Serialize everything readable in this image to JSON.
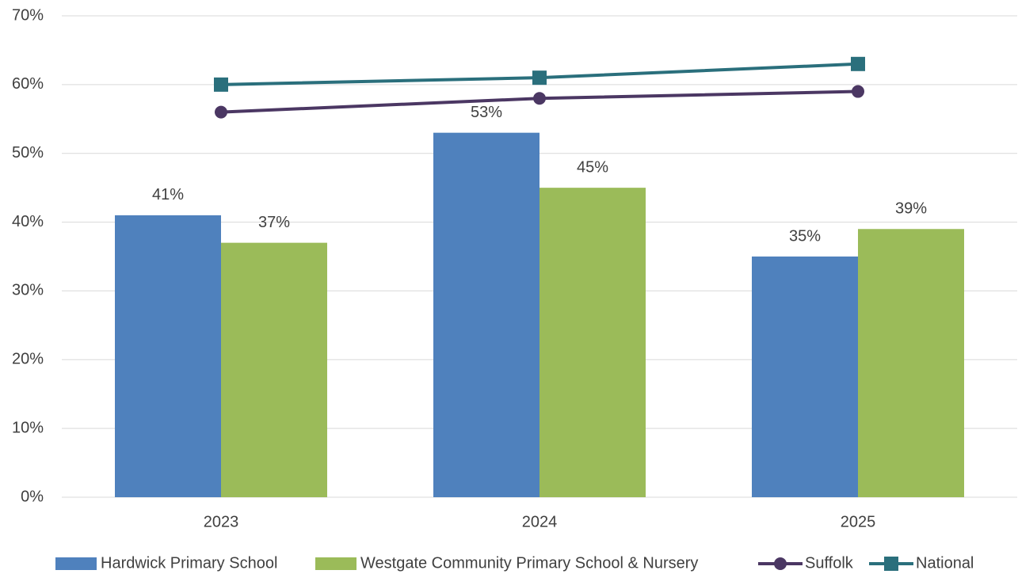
{
  "chart_data": {
    "type": "combo",
    "categories": [
      "2023",
      "2024",
      "2025"
    ],
    "series": [
      {
        "name": "Hardwick Primary School",
        "type": "bar",
        "color": "#4f81bd",
        "values": [
          41,
          53,
          35
        ],
        "value_labels": [
          "41%",
          "53%",
          "35%"
        ]
      },
      {
        "name": "Westgate Community Primary School & Nursery",
        "type": "bar",
        "color": "#9bbb59",
        "values": [
          37,
          45,
          39
        ],
        "value_labels": [
          "37%",
          "45%",
          "39%"
        ]
      },
      {
        "name": "Suffolk",
        "type": "line",
        "marker": "circle",
        "color": "#4b3763",
        "values": [
          56,
          58,
          59
        ]
      },
      {
        "name": "National",
        "type": "line",
        "marker": "square",
        "color": "#2a6f7c",
        "values": [
          60,
          61,
          63
        ]
      }
    ],
    "ylim": [
      0,
      70
    ],
    "yticks": [
      {
        "value": 0,
        "label": "0%"
      },
      {
        "value": 10,
        "label": "10%"
      },
      {
        "value": 20,
        "label": "20%"
      },
      {
        "value": 30,
        "label": "30%"
      },
      {
        "value": 40,
        "label": "40%"
      },
      {
        "value": 50,
        "label": "50%"
      },
      {
        "value": 60,
        "label": "60%"
      },
      {
        "value": 70,
        "label": "70%"
      }
    ],
    "grid": true,
    "legend": "bottom"
  }
}
